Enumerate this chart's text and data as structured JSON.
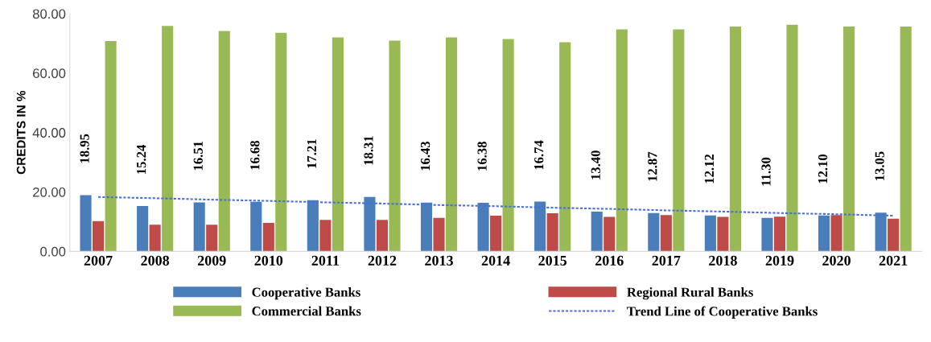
{
  "chart_data": {
    "type": "bar",
    "ylabel": "CREDITS IN %",
    "categories": [
      "2007",
      "2008",
      "2009",
      "2010",
      "2011",
      "2012",
      "2013",
      "2014",
      "2015",
      "2016",
      "2017",
      "2018",
      "2019",
      "2020",
      "2021"
    ],
    "series": [
      {
        "name": "Cooperative Banks",
        "color": "#4a7ebb",
        "values": [
          18.95,
          15.24,
          16.51,
          16.68,
          17.21,
          18.31,
          16.43,
          16.38,
          16.74,
          13.4,
          12.87,
          12.12,
          11.3,
          12.1,
          13.05
        ],
        "value_labels": [
          "18.95",
          "15.24",
          "16.51",
          "16.68",
          "17.21",
          "18.31",
          "16.43",
          "16.38",
          "16.74",
          "13.40",
          "12.87",
          "12.12",
          "11.30",
          "12.10",
          "13.05"
        ]
      },
      {
        "name": "Regional Rural Banks",
        "color": "#be4b48",
        "values": [
          10.2,
          9.0,
          9.0,
          9.6,
          10.6,
          10.6,
          11.3,
          12.0,
          12.8,
          11.6,
          12.2,
          11.6,
          11.7,
          12.2,
          11.0
        ]
      },
      {
        "name": "Commercial Banks",
        "color": "#98b954",
        "values": [
          70.8,
          75.9,
          74.2,
          73.6,
          72.0,
          70.9,
          72.0,
          71.5,
          70.4,
          74.7,
          74.7,
          75.7,
          76.3,
          75.7,
          75.7
        ]
      },
      {
        "name": "Trend Line of Cooperative Banks",
        "type": "line",
        "color": "#4a6fd8",
        "line_style": "dotted",
        "values": [
          18.3,
          17.9,
          17.4,
          17.0,
          16.5,
          16.1,
          15.6,
          15.2,
          14.7,
          14.3,
          13.8,
          13.4,
          12.9,
          12.5,
          12.0
        ]
      }
    ],
    "ylim": [
      0,
      80
    ],
    "yticks": [
      {
        "value": 0,
        "label": "0.00"
      },
      {
        "value": 20,
        "label": "20.00"
      },
      {
        "value": 40,
        "label": "40.00"
      },
      {
        "value": 60,
        "label": "60.00"
      },
      {
        "value": 80,
        "label": "80.00"
      }
    ],
    "legend": "bottom",
    "grid": false
  }
}
